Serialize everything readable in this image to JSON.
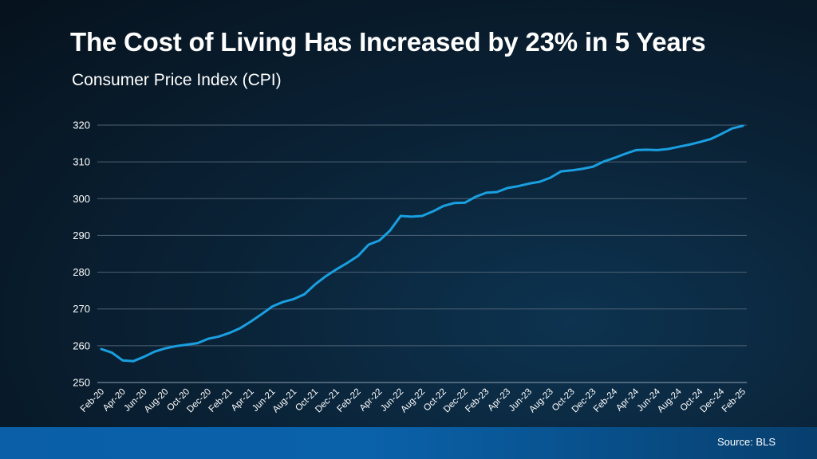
{
  "header": {
    "title": "The Cost of Living Has Increased by 23% in 5 Years",
    "subtitle": "Consumer Price Index (CPI)"
  },
  "footer": {
    "source": "Source: BLS"
  },
  "colors": {
    "line": "#1a9fe0",
    "grid": "#4e6275",
    "text": "#ffffff"
  },
  "chart_data": {
    "type": "line",
    "title": "The Cost of Living Has Increased by 23% in 5 Years",
    "subtitle": "Consumer Price Index (CPI)",
    "xlabel": "",
    "ylabel": "",
    "ylim": [
      250,
      320
    ],
    "yticks": [
      250,
      260,
      270,
      280,
      290,
      300,
      310,
      320
    ],
    "grid": true,
    "x": [
      "Feb-20",
      "Mar-20",
      "Apr-20",
      "May-20",
      "Jun-20",
      "Jul-20",
      "Aug-20",
      "Sep-20",
      "Oct-20",
      "Nov-20",
      "Dec-20",
      "Jan-21",
      "Feb-21",
      "Mar-21",
      "Apr-21",
      "May-21",
      "Jun-21",
      "Jul-21",
      "Aug-21",
      "Sep-21",
      "Oct-21",
      "Nov-21",
      "Dec-21",
      "Jan-22",
      "Feb-22",
      "Mar-22",
      "Apr-22",
      "May-22",
      "Jun-22",
      "Jul-22",
      "Aug-22",
      "Sep-22",
      "Oct-22",
      "Nov-22",
      "Dec-22",
      "Jan-23",
      "Feb-23",
      "Mar-23",
      "Apr-23",
      "May-23",
      "Jun-23",
      "Jul-23",
      "Aug-23",
      "Sep-23",
      "Oct-23",
      "Nov-23",
      "Dec-23",
      "Jan-24",
      "Feb-24",
      "Mar-24",
      "Apr-24",
      "May-24",
      "Jun-24",
      "Jul-24",
      "Aug-24",
      "Sep-24",
      "Oct-24",
      "Nov-24",
      "Dec-24",
      "Jan-25",
      "Feb-25"
    ],
    "xtick_labels": [
      "Feb-20",
      "Apr-20",
      "Jun-20",
      "Aug-20",
      "Oct-20",
      "Dec-20",
      "Feb-21",
      "Apr-21",
      "Jun-21",
      "Aug-21",
      "Oct-21",
      "Dec-21",
      "Feb-22",
      "Apr-22",
      "Jun-22",
      "Aug-22",
      "Oct-22",
      "Dec-22",
      "Feb-23",
      "Apr-23",
      "Jun-23",
      "Aug-23",
      "Oct-23",
      "Dec-23",
      "Feb-24",
      "Apr-24",
      "Jun-24",
      "Aug-24",
      "Oct-24",
      "Dec-24",
      "Feb-25"
    ],
    "series": [
      {
        "values": [
          259.1,
          258.1,
          256.0,
          255.8,
          257.0,
          258.4,
          259.3,
          259.9,
          260.3,
          260.7,
          261.9,
          262.5,
          263.5,
          264.8,
          266.6,
          268.6,
          270.7,
          271.9,
          272.7,
          274.0,
          276.7,
          278.9,
          280.8,
          282.5,
          284.4,
          287.5,
          288.6,
          291.3,
          295.3,
          295.1,
          295.3,
          296.5,
          298.0,
          298.8,
          298.9,
          300.5,
          301.6,
          301.8,
          302.9,
          303.4,
          304.1,
          304.6,
          305.7,
          307.4,
          307.7,
          308.1,
          308.7,
          310.1,
          311.1,
          312.2,
          313.2,
          313.3,
          313.2,
          313.5,
          314.1,
          314.7,
          315.4,
          316.2,
          317.6,
          319.1,
          319.8
        ]
      }
    ]
  }
}
